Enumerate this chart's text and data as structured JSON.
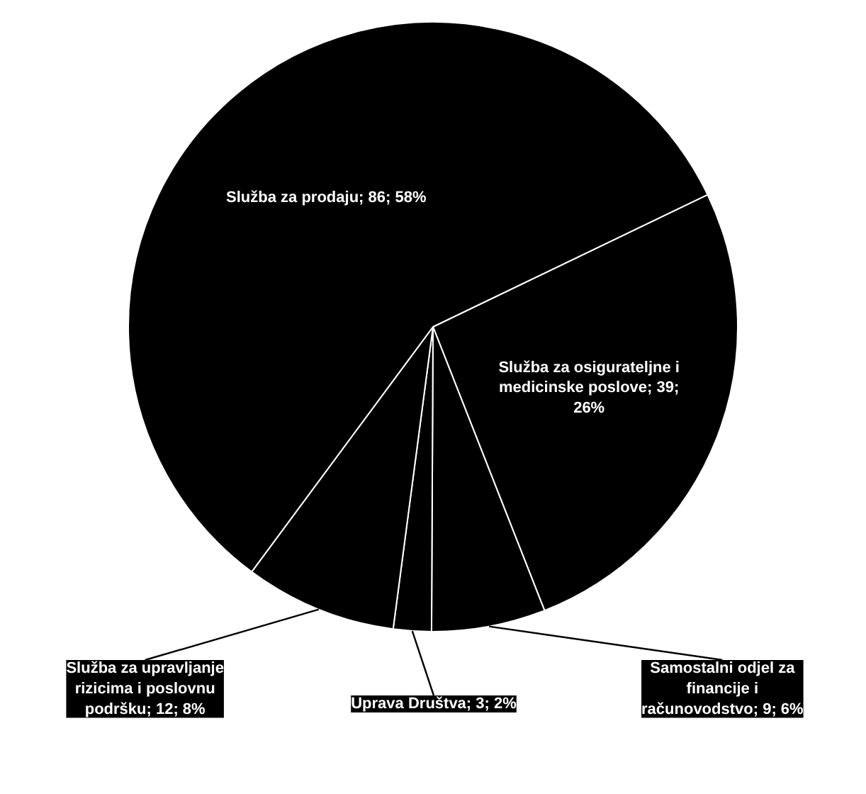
{
  "chart_data": {
    "type": "pie",
    "categories": [
      "Služba za osigurateljne i medicinske poslove",
      "Samostalni odjel za financije i računovodstvo",
      "Uprava Društva",
      "Služba za upravljanje rizicima i poslovnu podršku",
      "Služba za prodaju"
    ],
    "values": [
      39,
      9,
      3,
      12,
      86
    ],
    "colors": [
      "#000000",
      "#000000",
      "#000000",
      "#000000",
      "#000000"
    ],
    "value_labels": [
      "39; 26%",
      "9; 6%",
      "3; 2%",
      "12; 8%",
      "86; 58%"
    ]
  }
}
